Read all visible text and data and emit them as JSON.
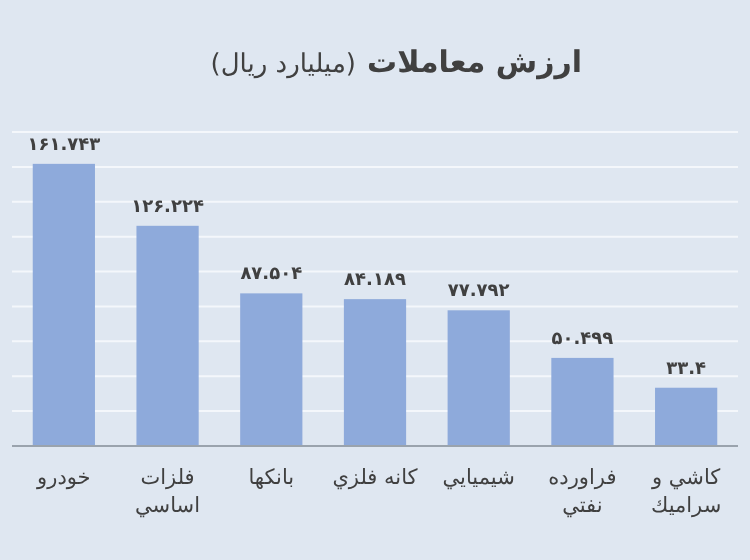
{
  "chart_data": {
    "type": "bar",
    "title": "ارزش معاملات",
    "subtitle": "(ميليارد ريال)",
    "categories": [
      "خودرو",
      "فلزات اساسي",
      "بانكها",
      "كانه فلزي",
      "شيميايي",
      "فراورده نفتي",
      "كاشي و سراميك"
    ],
    "values": [
      161.743,
      126.224,
      87.504,
      84.189,
      77.792,
      50.499,
      33.4
    ],
    "value_labels": [
      "۱۶۱.۷۴۳",
      "۱۲۶.۲۲۴",
      "۸۷.۵۰۴",
      "۸۴.۱۸۹",
      "۷۷.۷۹۲",
      "۵۰.۴۹۹",
      "۳۳.۴"
    ],
    "color": "#8eaadb",
    "ylim": [
      0,
      180
    ],
    "yticks": [
      {
        "value": 0,
        "label": null
      },
      {
        "value": 20,
        "label": null
      },
      {
        "value": 40,
        "label": null
      },
      {
        "value": 60,
        "label": null
      },
      {
        "value": 80,
        "label": null
      },
      {
        "value": 100,
        "label": null
      },
      {
        "value": 120,
        "label": null
      },
      {
        "value": 140,
        "label": null
      },
      {
        "value": 160,
        "label": null
      },
      {
        "value": 180,
        "label": null
      }
    ],
    "grid": "y",
    "tick_labels": "x"
  }
}
